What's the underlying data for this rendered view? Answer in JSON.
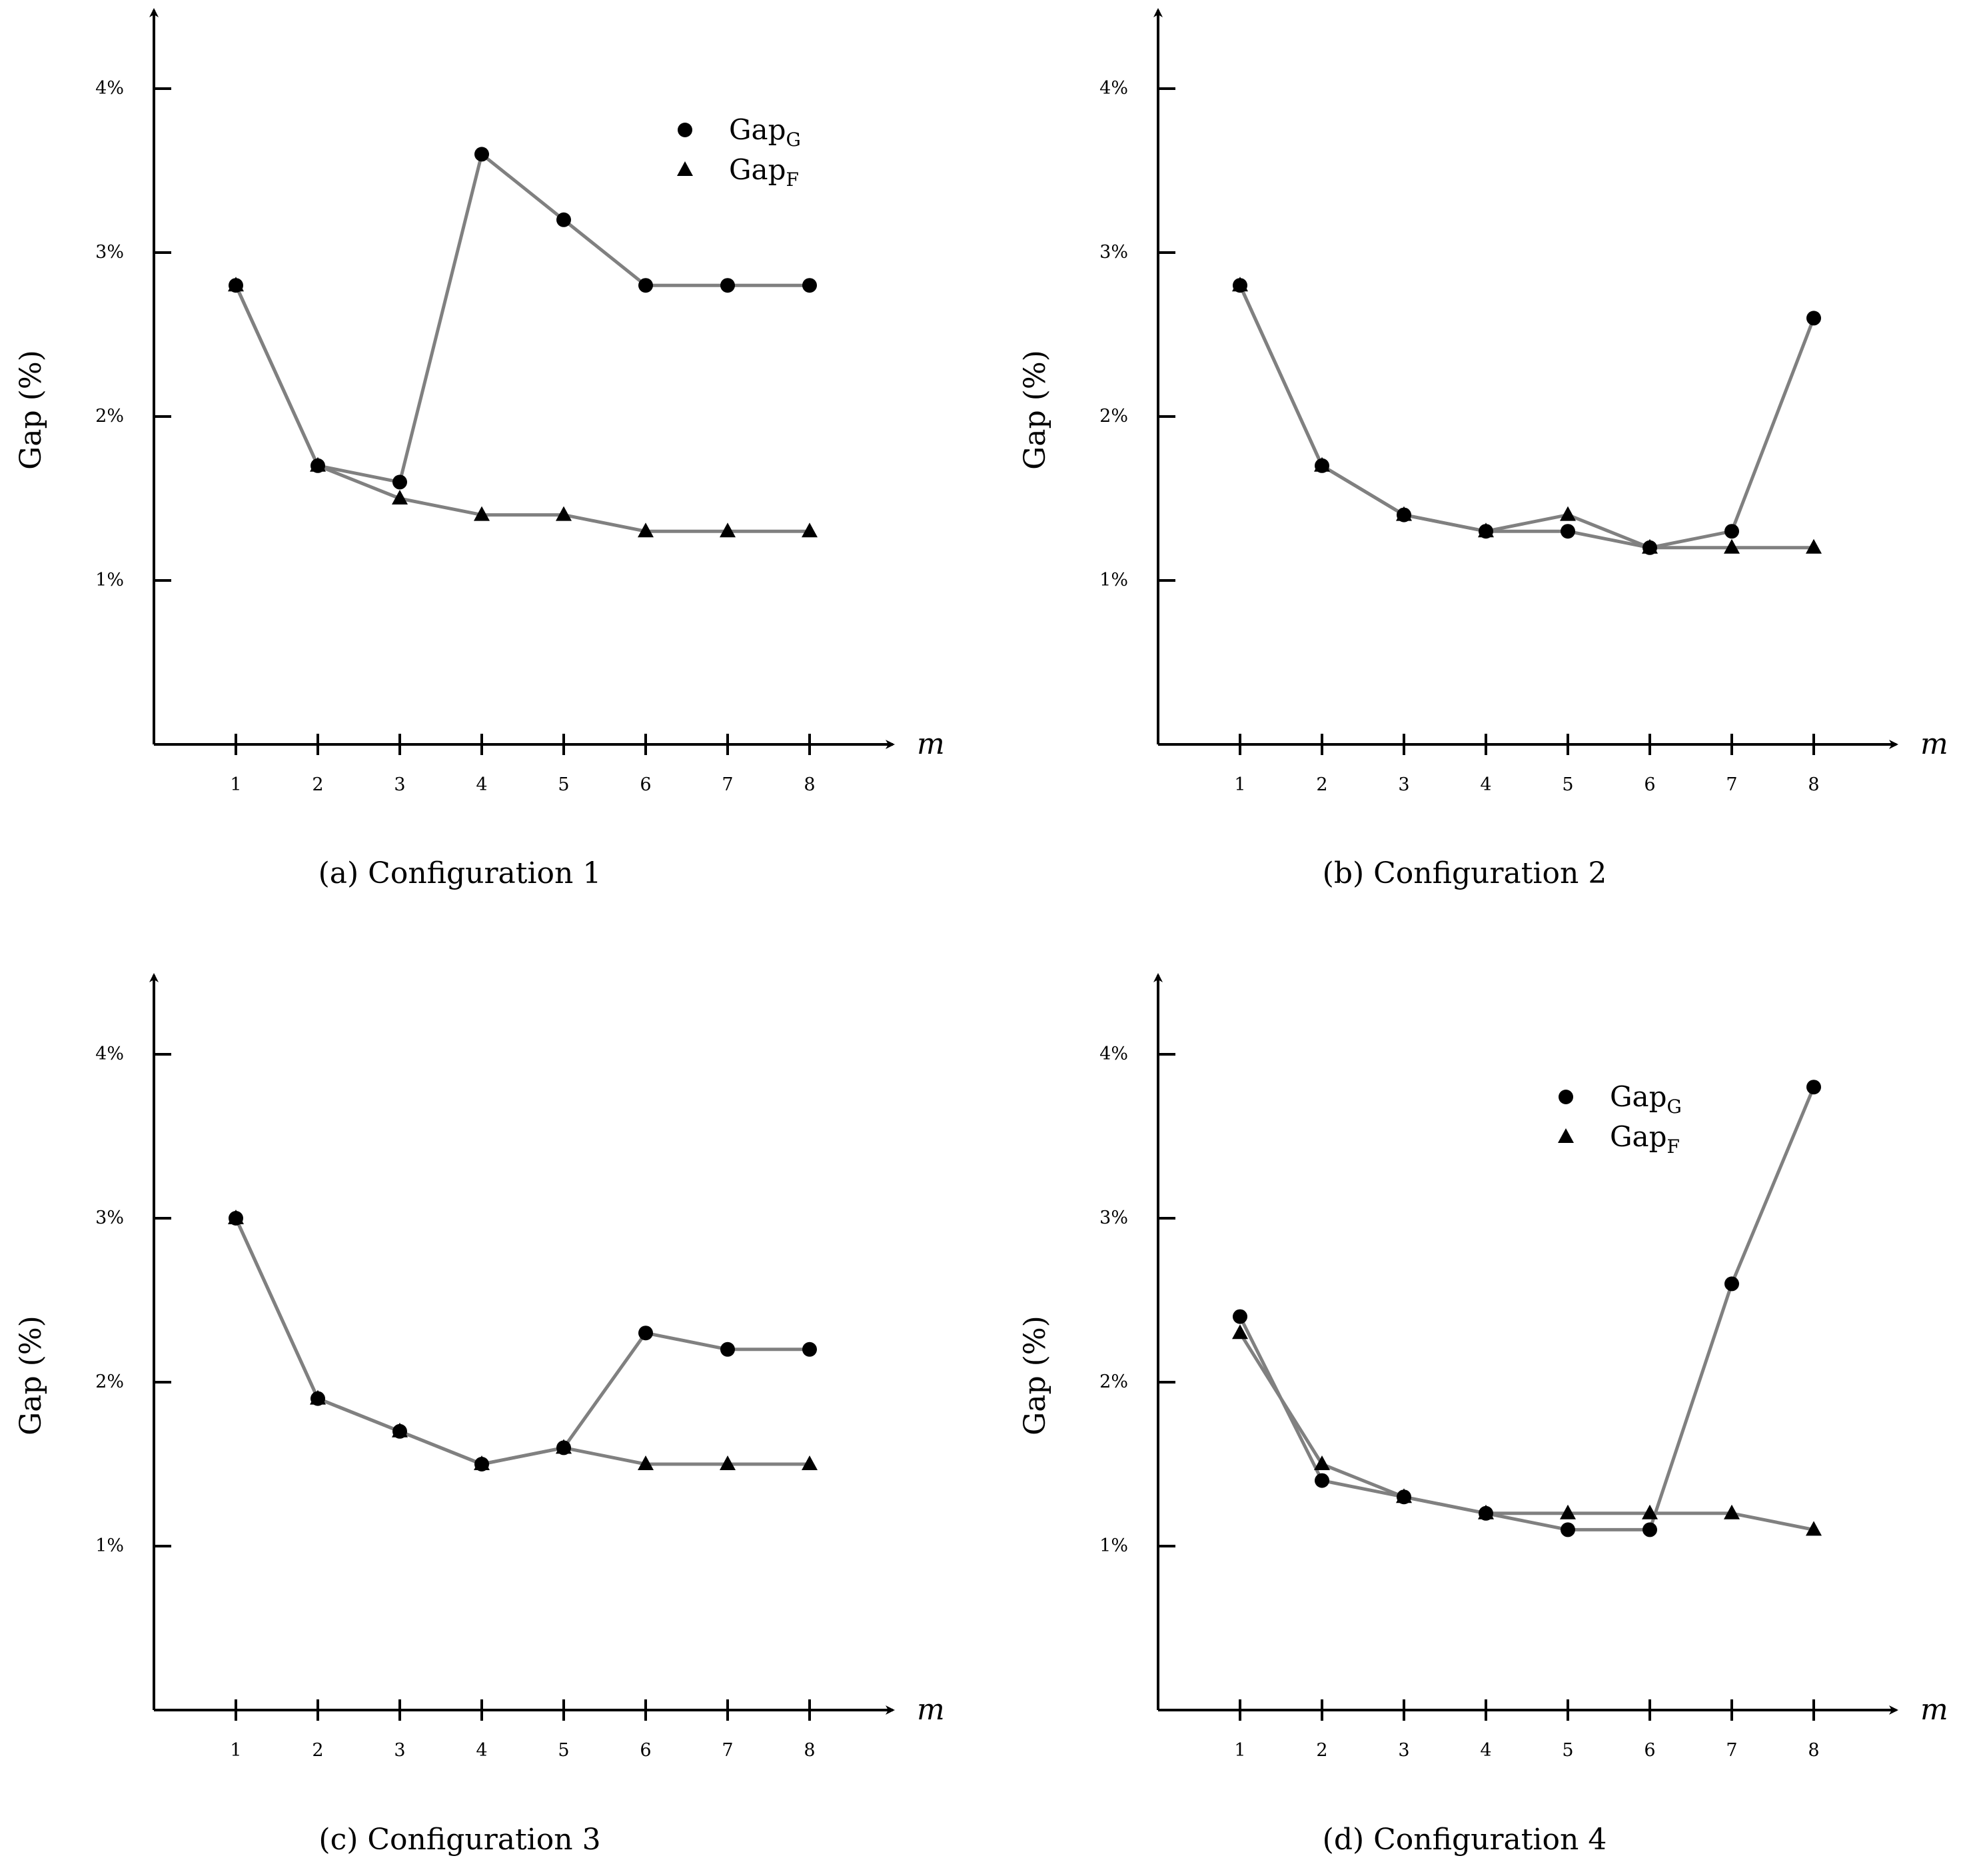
{
  "chart_data": [
    {
      "type": "line",
      "caption": "(a) Configuration 1",
      "xlabel": "m",
      "ylabel": "Gap (%)",
      "categories": [
        1,
        2,
        3,
        4,
        5,
        6,
        7,
        8
      ],
      "ylim": [
        0,
        4.5
      ],
      "yticks": [
        "1%",
        "2%",
        "3%",
        "4%"
      ],
      "legend": {
        "show": true,
        "placement": "top-right",
        "entries": [
          {
            "base": "Gap",
            "sub": "G",
            "marker": "circle"
          },
          {
            "base": "Gap",
            "sub": "F",
            "marker": "triangle"
          }
        ]
      },
      "series": [
        {
          "name": "Gap_G",
          "marker": "circle",
          "values": [
            2.8,
            1.7,
            1.6,
            3.6,
            3.2,
            2.8,
            2.8,
            2.8
          ]
        },
        {
          "name": "Gap_F",
          "marker": "triangle",
          "values": [
            2.8,
            1.7,
            1.5,
            1.4,
            1.4,
            1.3,
            1.3,
            1.3
          ]
        }
      ]
    },
    {
      "type": "line",
      "caption": "(b) Configuration 2",
      "xlabel": "m",
      "ylabel": "Gap (%)",
      "categories": [
        1,
        2,
        3,
        4,
        5,
        6,
        7,
        8
      ],
      "ylim": [
        0,
        4.5
      ],
      "yticks": [
        "1%",
        "2%",
        "3%",
        "4%"
      ],
      "legend": {
        "show": false
      },
      "series": [
        {
          "name": "Gap_G",
          "marker": "circle",
          "values": [
            2.8,
            1.7,
            1.4,
            1.3,
            1.3,
            1.2,
            1.3,
            2.6
          ]
        },
        {
          "name": "Gap_F",
          "marker": "triangle",
          "values": [
            2.8,
            1.7,
            1.4,
            1.3,
            1.4,
            1.2,
            1.2,
            1.2
          ]
        }
      ]
    },
    {
      "type": "line",
      "caption": "(c) Configuration 3",
      "xlabel": "m",
      "ylabel": "Gap (%)",
      "categories": [
        1,
        2,
        3,
        4,
        5,
        6,
        7,
        8
      ],
      "ylim": [
        0,
        4.5
      ],
      "yticks": [
        "1%",
        "2%",
        "3%",
        "4%"
      ],
      "legend": {
        "show": false
      },
      "series": [
        {
          "name": "Gap_G",
          "marker": "circle",
          "values": [
            3.0,
            1.9,
            1.7,
            1.5,
            1.6,
            2.3,
            2.2,
            2.2
          ]
        },
        {
          "name": "Gap_F",
          "marker": "triangle",
          "values": [
            3.0,
            1.9,
            1.7,
            1.5,
            1.6,
            1.5,
            1.5,
            1.5
          ]
        }
      ]
    },
    {
      "type": "line",
      "caption": "(d) Configuration 4",
      "xlabel": "m",
      "ylabel": "Gap (%)",
      "categories": [
        1,
        2,
        3,
        4,
        5,
        6,
        7,
        8
      ],
      "ylim": [
        0,
        4.5
      ],
      "yticks": [
        "1%",
        "2%",
        "3%",
        "4%"
      ],
      "legend": {
        "show": true,
        "placement": "top-right",
        "entries": [
          {
            "base": "Gap",
            "sub": "G",
            "marker": "circle"
          },
          {
            "base": "Gap",
            "sub": "F",
            "marker": "triangle"
          }
        ]
      },
      "series": [
        {
          "name": "Gap_G",
          "marker": "circle",
          "values": [
            2.4,
            1.4,
            1.3,
            1.2,
            1.1,
            1.1,
            2.6,
            3.8
          ]
        },
        {
          "name": "Gap_F",
          "marker": "triangle",
          "values": [
            2.3,
            1.5,
            1.3,
            1.2,
            1.2,
            1.2,
            1.2,
            1.1
          ]
        }
      ]
    }
  ]
}
